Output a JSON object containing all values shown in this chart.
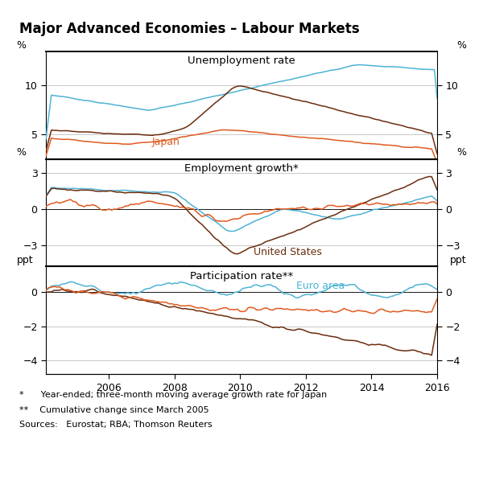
{
  "title": "Major Advanced Economies – Labour Markets",
  "colors": {
    "euro_area": "#4db3d4",
    "us": "#6b2d0e",
    "japan": "#e05a20"
  },
  "panel1": {
    "title": "Unemployment rate",
    "ylabel_left": "%",
    "ylabel_right": "%",
    "ylim": [
      2.5,
      13.5
    ],
    "yticks": [
      5,
      10
    ],
    "label_japan": "Japan"
  },
  "panel2": {
    "title": "Employment growth*",
    "ylabel_left": "%",
    "ylabel_right": "%",
    "ylim": [
      -4.8,
      4.2
    ],
    "yticks": [
      -3,
      0,
      3
    ],
    "label_us": "United States"
  },
  "panel3": {
    "title": "Participation rate**",
    "ylabel_left": "ppt",
    "ylabel_right": "ppt",
    "ylim": [
      -4.8,
      1.5
    ],
    "yticks": [
      -4,
      -2,
      0
    ],
    "label_euro": "Euro area"
  },
  "xmin": 2004.08,
  "xmax": 2016.0,
  "xticks": [
    2006,
    2008,
    2010,
    2012,
    2014,
    2016
  ],
  "footnote1": "*      Year-ended; three-month moving average growth rate for Japan",
  "footnote2": "**    Cumulative change since March 2005",
  "footnote3": "Sources:   Eurostat; RBA; Thomson Reuters",
  "background_color": "#ffffff",
  "grid_color": "#c8c8c8"
}
